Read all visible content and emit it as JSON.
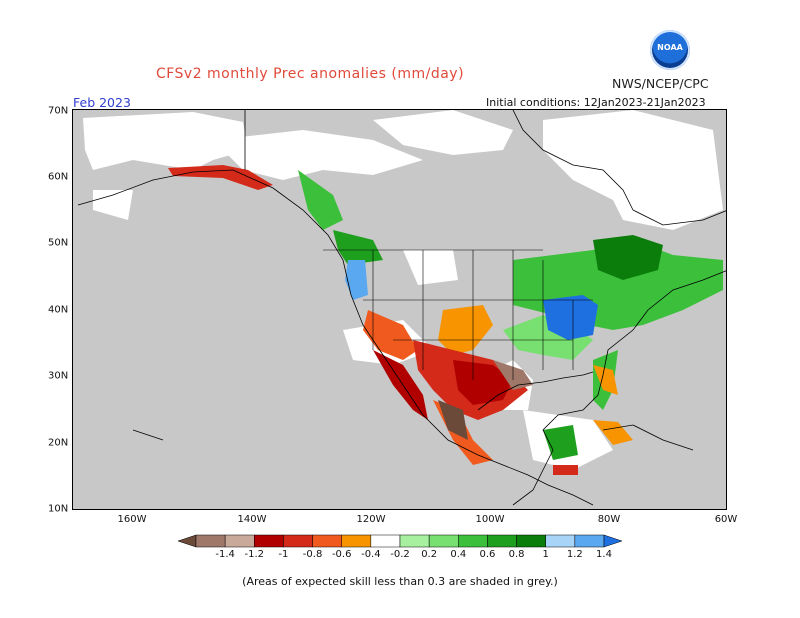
{
  "header": {
    "title": "CFSv2 monthly Prec anomalies (mm/day)",
    "agency": "NWS/NCEP/CPC",
    "logo_text": "NOAA",
    "month": "Feb 2023",
    "initial_conditions": "Initial conditions: 12Jan2023-21Jan2023"
  },
  "axes": {
    "lat_labels": [
      "70N",
      "60N",
      "50N",
      "40N",
      "30N",
      "20N",
      "10N"
    ],
    "lon_labels": [
      "160W",
      "140W",
      "120W",
      "100W",
      "80W",
      "60W"
    ]
  },
  "colorbar": {
    "labels": [
      "-1.4",
      "-1.2",
      "-1",
      "-0.8",
      "-0.6",
      "-0.4",
      "-0.2",
      "0.2",
      "0.4",
      "0.6",
      "0.8",
      "1",
      "1.2",
      "1.4"
    ],
    "colors": [
      "#6b4a3a",
      "#a0786a",
      "#c9a99a",
      "#b00000",
      "#d42a1a",
      "#f05a1e",
      "#f79400",
      "#ffffff",
      "#a7f0a0",
      "#78e070",
      "#3cc03c",
      "#1ea01e",
      "#0a7d0a",
      "#a8d4f8",
      "#5aa8f0",
      "#1e6fe0"
    ]
  },
  "footnote": "(Areas of expected skill less than 0.3 are shaded in grey.)"
}
